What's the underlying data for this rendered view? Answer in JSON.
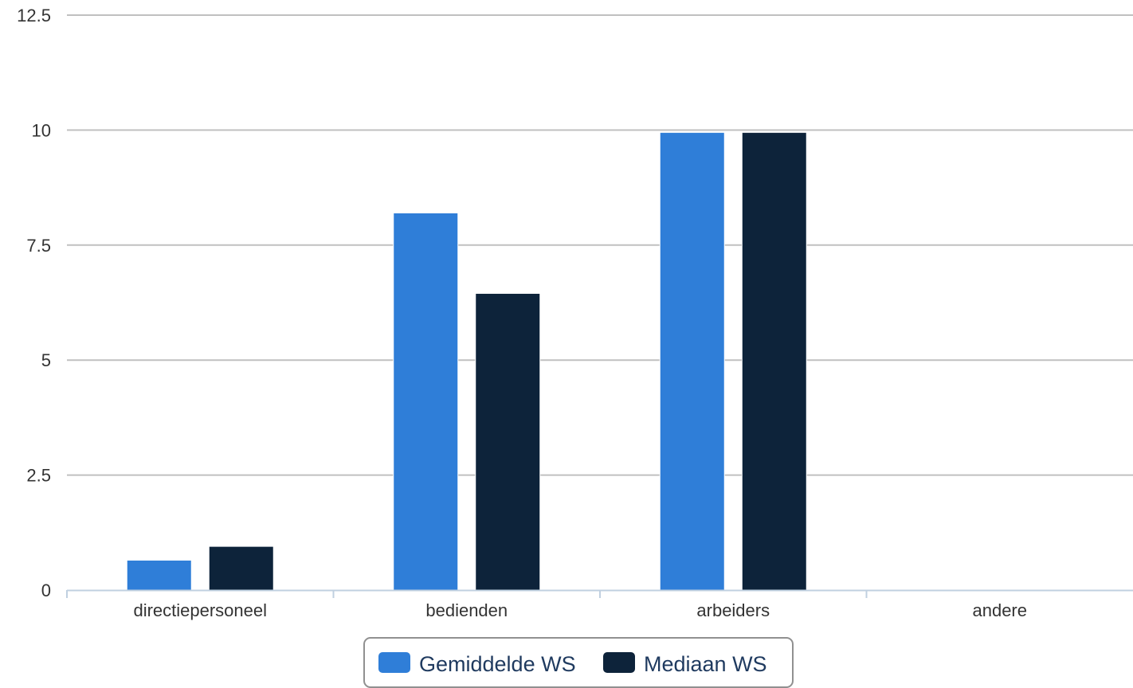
{
  "chart_data": {
    "type": "bar",
    "categories": [
      "directiepersoneel",
      "bedienden",
      "arbeiders",
      "andere"
    ],
    "series": [
      {
        "name": "Gemiddelde WS",
        "values": [
          0.65,
          8.2,
          9.95,
          0
        ],
        "color": "#2f7ed8"
      },
      {
        "name": "Mediaan WS",
        "values": [
          0.95,
          6.45,
          9.95,
          0
        ],
        "color": "#0d233a"
      }
    ],
    "yticks": [
      "0",
      "2.5",
      "5",
      "7.5",
      "10",
      "12.5"
    ],
    "ylim": [
      0,
      12.5
    ],
    "grid": true,
    "legend": "bottom-center"
  }
}
